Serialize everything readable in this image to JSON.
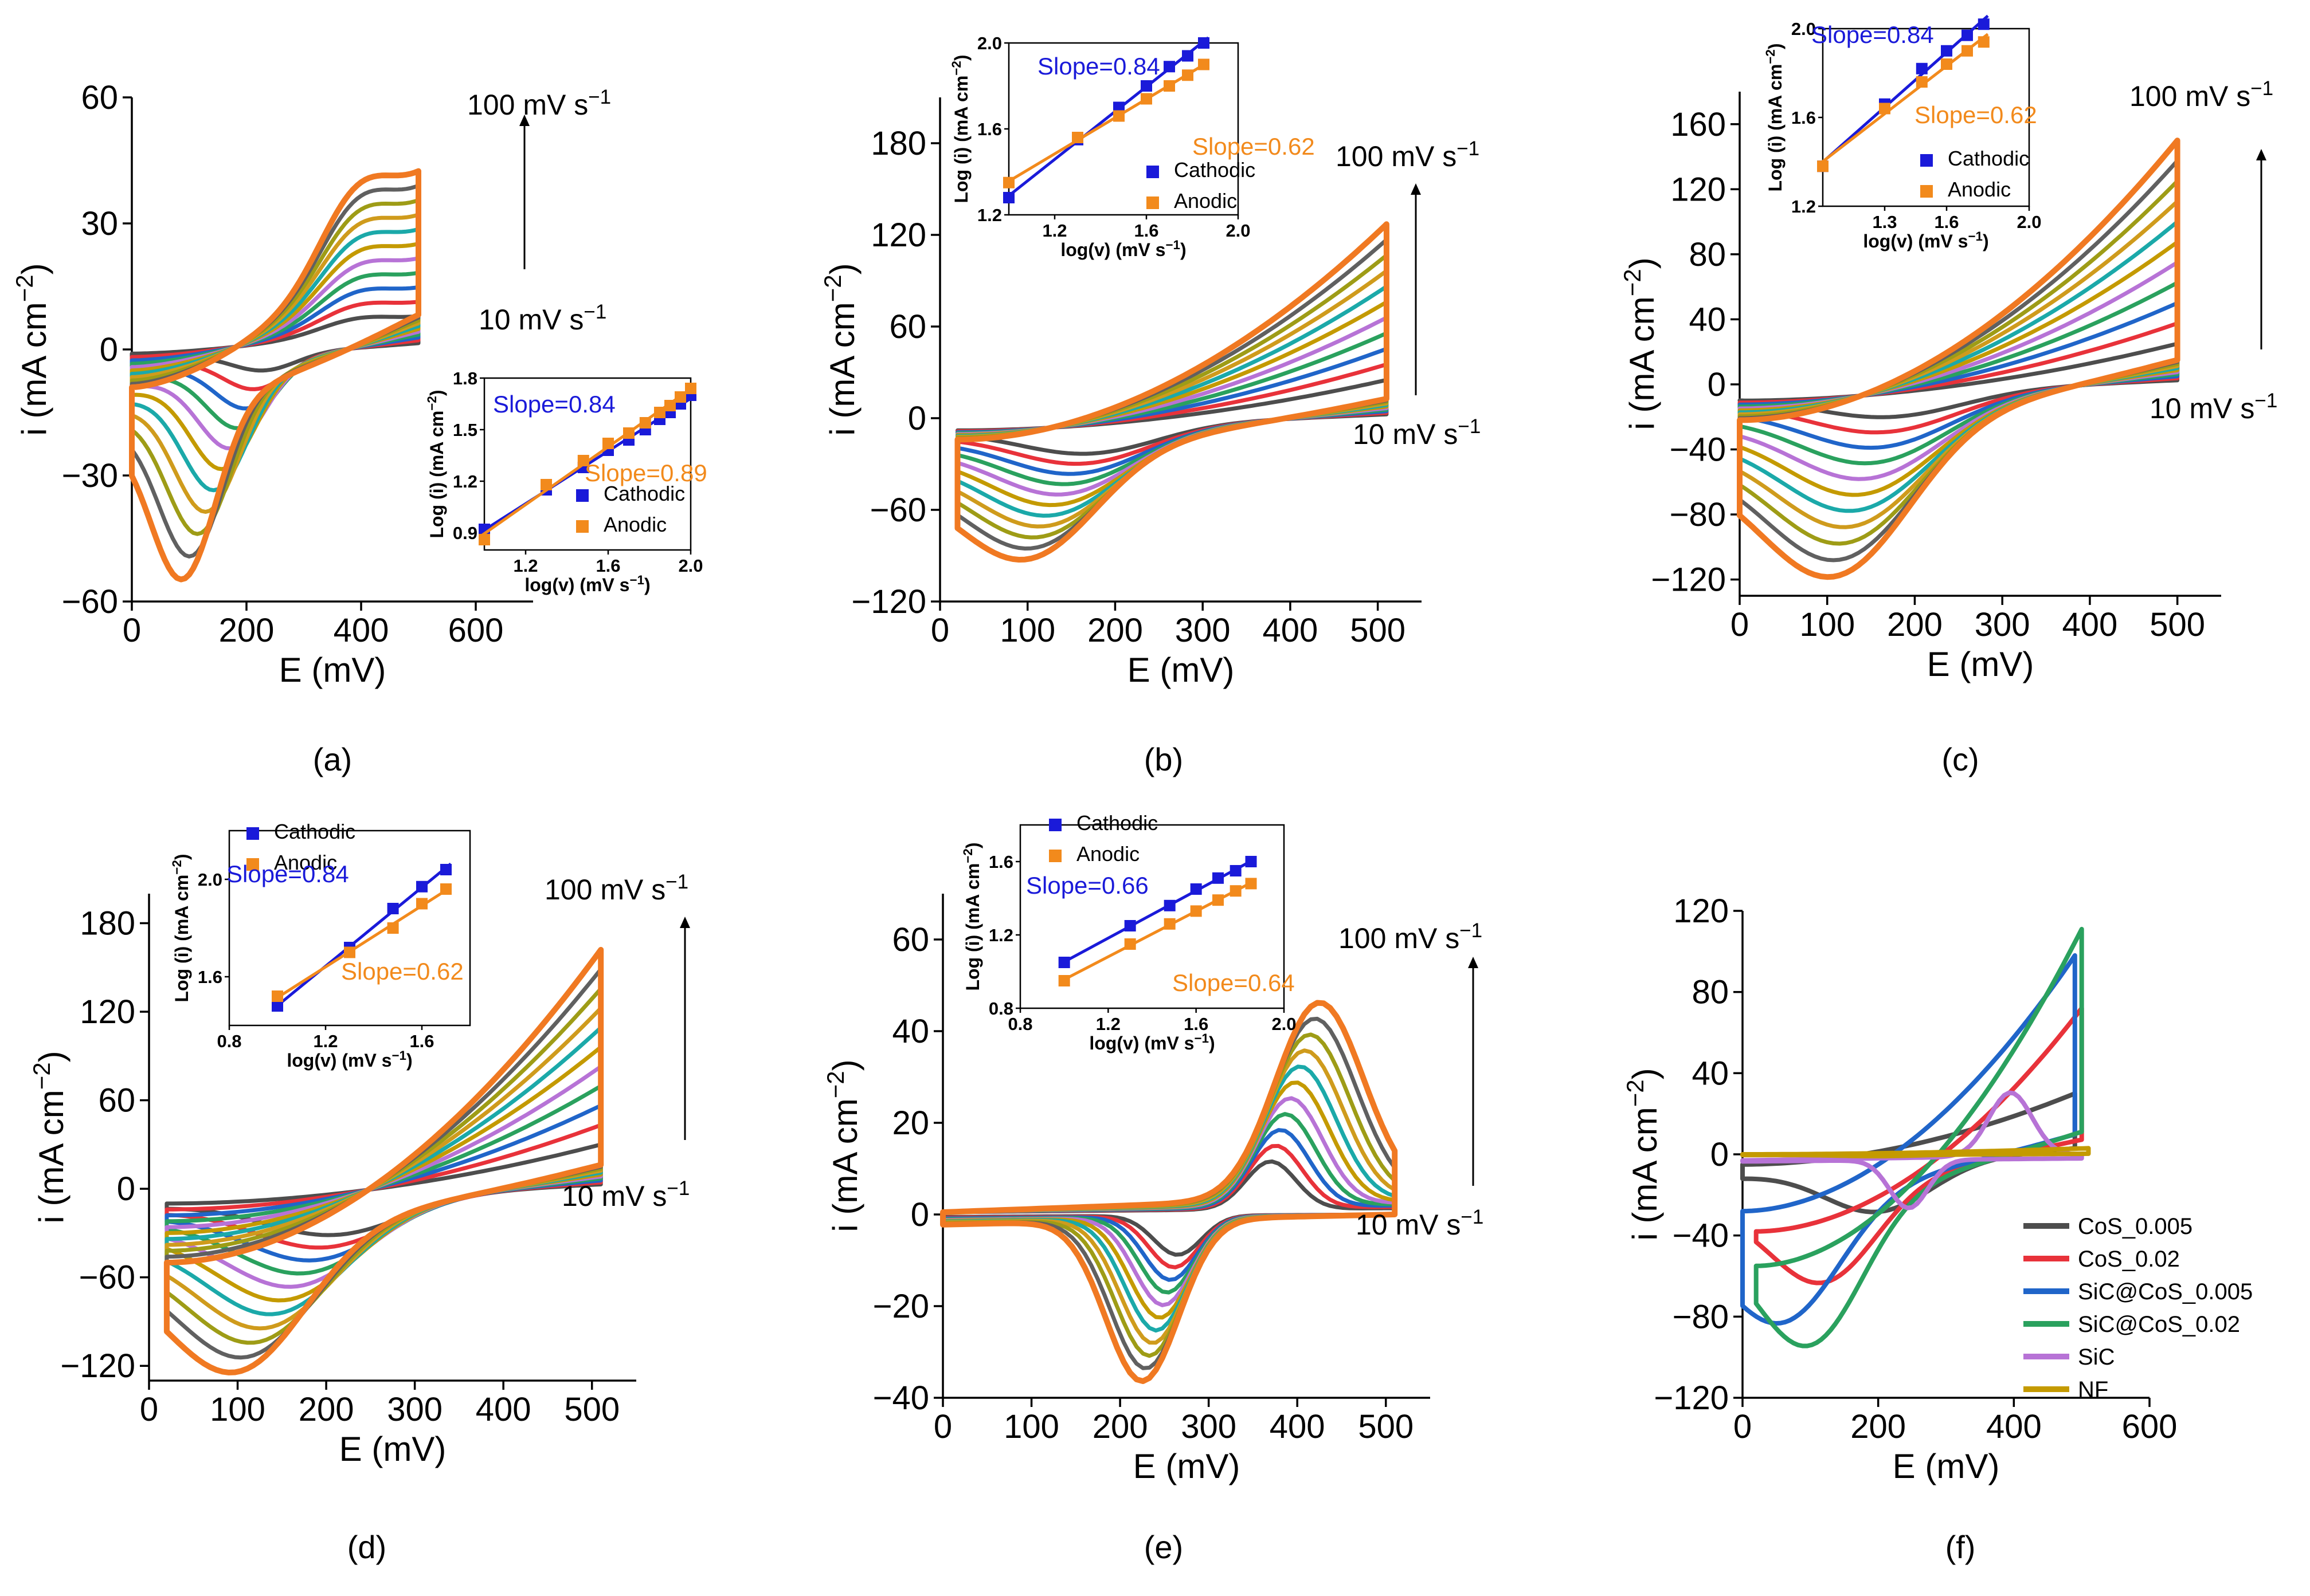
{
  "colors": {
    "scan_rate_series": [
      "#4d4d4d",
      "#e8323a",
      "#2065c9",
      "#2aa15e",
      "#b773d6",
      "#c49a00",
      "#1ba9a9",
      "#cf9b1c",
      "#9e9c16",
      "#606060",
      "#f07922"
    ],
    "cathodic": "#1a1ad9",
    "anodic": "#f28a1c",
    "slope_cathodic_text": "#1a1ad9",
    "slope_anodic_text": "#f28a1c"
  },
  "chart_data": [
    {
      "panel": "(a)",
      "type": "line",
      "xlabel": "E (mV)",
      "ylabel": "i (mA cm−2)",
      "xlim": [
        0,
        700
      ],
      "ylim": [
        -60,
        60
      ],
      "xticks": [
        "0",
        "200",
        "400",
        "600"
      ],
      "yticks": [
        "60",
        "30",
        "0",
        "−30",
        "−60"
      ],
      "annotation_top": "100 mV s−1",
      "annotation_bottom": "10 mV s−1",
      "series": [
        {
          "scan_rate": 10,
          "e_range": [
            0,
            500
          ],
          "i_peak_anodic": 10,
          "i_peak_cathodic": -6,
          "e_peak_anodic": 400,
          "e_peak_cathodic": 230
        },
        {
          "scan_rate": 100,
          "e_range": [
            0,
            500
          ],
          "i_peak_anodic": 55,
          "i_peak_cathodic": -57,
          "e_peak_anodic": 400,
          "e_peak_cathodic": 90
        }
      ],
      "inset": {
        "xlabel": "log(v) (mV s−1)",
        "ylabel": "Log (i) (mA cm−2)",
        "xlim": [
          1.0,
          2.0
        ],
        "ylim": [
          0.8,
          1.8
        ],
        "xticks": [
          "1.2",
          "1.6",
          "2.0"
        ],
        "yticks": [
          "1.8",
          "1.5",
          "1.2",
          "0.9"
        ],
        "legend": [
          "Cathodic",
          "Anodic"
        ],
        "slope_cathodic": "Slope=0.84",
        "slope_anodic": "Slope=0.89",
        "cathodic_x": [
          1.0,
          1.3,
          1.48,
          1.6,
          1.7,
          1.78,
          1.85,
          1.9,
          1.95,
          2.0
        ],
        "cathodic_y": [
          0.92,
          1.15,
          1.28,
          1.38,
          1.44,
          1.5,
          1.56,
          1.6,
          1.65,
          1.7
        ],
        "anodic_x": [
          1.0,
          1.3,
          1.48,
          1.6,
          1.7,
          1.78,
          1.85,
          1.9,
          1.95,
          2.0
        ],
        "anodic_y": [
          0.86,
          1.18,
          1.32,
          1.42,
          1.48,
          1.54,
          1.6,
          1.64,
          1.69,
          1.74
        ]
      }
    },
    {
      "panel": "(b)",
      "type": "line",
      "xlabel": "E (mV)",
      "ylabel": "i (mA cm−2)",
      "xlim": [
        0,
        550
      ],
      "ylim": [
        -120,
        210
      ],
      "xticks": [
        "0",
        "100",
        "200",
        "300",
        "400",
        "500"
      ],
      "yticks": [
        "180",
        "120",
        "60",
        "0",
        "−60",
        "−120"
      ],
      "annotation_top": "100 mV s−1",
      "annotation_bottom": "10 mV s−1",
      "series": [
        {
          "scan_rate": 10,
          "e_range": [
            20,
            510
          ],
          "i_peak_anodic": 25,
          "i_peak_cathodic": -25
        },
        {
          "scan_rate": 100,
          "e_range": [
            20,
            515
          ],
          "i_peak_anodic": 127,
          "i_peak_cathodic": -93
        }
      ],
      "inset": {
        "xlabel": "log(v) (mV s−1)",
        "ylabel": "Log (i) (mA cm−2)",
        "xlim": [
          1.0,
          2.0
        ],
        "ylim": [
          1.2,
          2.0
        ],
        "xticks": [
          "1.2",
          "1.6",
          "2.0"
        ],
        "yticks": [
          "2.0",
          "1.6",
          "1.2"
        ],
        "legend": [
          "Cathodic",
          "Anodic"
        ],
        "slope_cathodic": "Slope=0.84",
        "slope_anodic": "Slope=0.62",
        "cathodic_x": [
          1.0,
          1.3,
          1.48,
          1.6,
          1.7,
          1.78,
          1.85
        ],
        "cathodic_y": [
          1.28,
          1.55,
          1.7,
          1.8,
          1.89,
          1.94,
          2.0
        ],
        "anodic_x": [
          1.0,
          1.3,
          1.48,
          1.6,
          1.7,
          1.78,
          1.85
        ],
        "anodic_y": [
          1.35,
          1.56,
          1.66,
          1.74,
          1.8,
          1.85,
          1.9
        ]
      }
    },
    {
      "panel": "(c)",
      "type": "line",
      "xlabel": "E (mV)",
      "ylabel": "i (mA cm−2)",
      "xlim": [
        0,
        550
      ],
      "ylim": [
        -130,
        180
      ],
      "xticks": [
        "0",
        "100",
        "200",
        "300",
        "400",
        "500"
      ],
      "yticks": [
        "160",
        "120",
        "80",
        "40",
        "0",
        "−40",
        "−80",
        "−120"
      ],
      "annotation_top": "100 mV s−1",
      "annotation_bottom": "10 mV s−1",
      "series": [
        {
          "scan_rate": 10,
          "e_range": [
            0,
            500
          ],
          "i_peak_anodic": 25,
          "i_peak_cathodic": -22
        },
        {
          "scan_rate": 100,
          "e_range": [
            0,
            500
          ],
          "i_peak_anodic": 150,
          "i_peak_cathodic": -122
        }
      ],
      "inset": {
        "xlabel": "log(v) (mV s−1)",
        "ylabel": "Log (i) (mA cm−2)",
        "xlim": [
          1.0,
          2.0
        ],
        "ylim": [
          1.2,
          2.0
        ],
        "xticks": [
          "1.3",
          "1.6",
          "2.0"
        ],
        "yticks": [
          "2.0",
          "1.6",
          "1.2"
        ],
        "legend": [
          "Cathodic",
          "Anodic"
        ],
        "slope_cathodic": "Slope=0.84",
        "slope_anodic": "Slope=0.62",
        "cathodic_x": [
          1.0,
          1.3,
          1.48,
          1.6,
          1.7,
          1.78
        ],
        "cathodic_y": [
          1.38,
          1.66,
          1.82,
          1.9,
          1.97,
          2.02
        ],
        "anodic_x": [
          1.0,
          1.3,
          1.48,
          1.6,
          1.7,
          1.78
        ],
        "anodic_y": [
          1.38,
          1.64,
          1.76,
          1.84,
          1.9,
          1.94
        ]
      }
    },
    {
      "panel": "(d)",
      "type": "line",
      "xlabel": "E (mV)",
      "ylabel": "i (mA cm−2)",
      "xlim": [
        0,
        550
      ],
      "ylim": [
        -130,
        200
      ],
      "xticks": [
        "0",
        "100",
        "200",
        "300",
        "400",
        "500"
      ],
      "yticks": [
        "180",
        "120",
        "60",
        "0",
        "−60",
        "−120"
      ],
      "annotation_top": "100 mV s−1",
      "annotation_bottom": "10 mV s−1",
      "series": [
        {
          "scan_rate": 10,
          "e_range": [
            20,
            510
          ],
          "i_peak_anodic": 30,
          "i_peak_cathodic": -35
        },
        {
          "scan_rate": 100,
          "e_range": [
            20,
            510
          ],
          "i_peak_anodic": 162,
          "i_peak_cathodic": -125
        }
      ],
      "inset": {
        "xlabel": "log(v) (mV s−1)",
        "ylabel": "Log (i) (mA cm−2)",
        "xlim": [
          0.8,
          1.8
        ],
        "ylim": [
          1.4,
          2.2
        ],
        "xticks": [
          "0.8",
          "1.2",
          "1.6"
        ],
        "yticks": [
          "2.0",
          "1.6"
        ],
        "legend": [
          "Cathodic",
          "Anodic"
        ],
        "slope_cathodic": "Slope=0.84",
        "slope_anodic": "Slope=0.62",
        "cathodic_x": [
          1.0,
          1.3,
          1.48,
          1.6,
          1.7
        ],
        "cathodic_y": [
          1.48,
          1.72,
          1.88,
          1.97,
          2.04
        ],
        "anodic_x": [
          1.0,
          1.3,
          1.48,
          1.6,
          1.7
        ],
        "anodic_y": [
          1.52,
          1.7,
          1.8,
          1.9,
          1.96
        ]
      }
    },
    {
      "panel": "(e)",
      "type": "line",
      "xlabel": "E (mV)",
      "ylabel": "i (mA cm−2)",
      "xlim": [
        0,
        550
      ],
      "ylim": [
        -40,
        70
      ],
      "xticks": [
        "0",
        "100",
        "200",
        "300",
        "400",
        "500"
      ],
      "yticks": [
        "60",
        "40",
        "20",
        "0",
        "−20",
        "−40"
      ],
      "annotation_top": "100 mV s−1",
      "annotation_bottom": "10 mV s−1",
      "series": [
        {
          "scan_rate": 10,
          "e_range": [
            0,
            510
          ],
          "i_peak_anodic": 11,
          "i_peak_cathodic": -9,
          "e_peak_anodic": 370,
          "e_peak_cathodic": 265
        },
        {
          "scan_rate": 100,
          "e_range": [
            0,
            510
          ],
          "i_peak_anodic": 45,
          "i_peak_cathodic": -37,
          "e_peak_anodic": 425,
          "e_peak_cathodic": 225
        }
      ],
      "inset": {
        "xlabel": "log(v) (mV s−1)",
        "ylabel": "Log (i) (mA cm−2)",
        "xlim": [
          0.8,
          2.0
        ],
        "ylim": [
          0.8,
          1.8
        ],
        "xticks": [
          "0.8",
          "1.2",
          "1.6",
          "2.0"
        ],
        "yticks": [
          "1.6",
          "1.2",
          "0.8"
        ],
        "legend": [
          "Cathodic",
          "Anodic"
        ],
        "slope_cathodic": "Slope=0.66",
        "slope_anodic": "Slope=0.64",
        "cathodic_x": [
          1.0,
          1.3,
          1.48,
          1.6,
          1.7,
          1.78,
          1.85
        ],
        "cathodic_y": [
          1.05,
          1.25,
          1.36,
          1.45,
          1.51,
          1.55,
          1.6
        ],
        "anodic_x": [
          1.0,
          1.3,
          1.48,
          1.6,
          1.7,
          1.78,
          1.85
        ],
        "anodic_y": [
          0.95,
          1.15,
          1.26,
          1.33,
          1.39,
          1.44,
          1.48
        ]
      }
    },
    {
      "panel": "(f)",
      "type": "line",
      "xlabel": "E (mV)",
      "ylabel": "i (mA cm−2)",
      "xlim": [
        0,
        600
      ],
      "ylim": [
        -120,
        120
      ],
      "xticks": [
        "0",
        "200",
        "400",
        "600"
      ],
      "yticks": [
        "120",
        "80",
        "40",
        "0",
        "−40",
        "−80",
        "−120"
      ],
      "legend": [
        "CoS_0.005",
        "CoS_0.02",
        "SiC@CoS_0.005",
        "SiC@CoS_0.02",
        "SiC",
        "NF"
      ],
      "series": [
        {
          "name": "CoS_0.005",
          "color": "#4d4d4d",
          "i_peak_anodic": 30,
          "i_peak_cathodic": -32
        },
        {
          "name": "CoS_0.02",
          "color": "#e8323a",
          "i_peak_anodic": 79,
          "i_peak_cathodic": -65
        },
        {
          "name": "SiC@CoS_0.005",
          "color": "#2065c9",
          "i_peak_anodic": 98,
          "i_peak_cathodic": -85
        },
        {
          "name": "SiC@CoS_0.02",
          "color": "#2aa15e",
          "i_peak_anodic": 111,
          "i_peak_cathodic": -95
        },
        {
          "name": "SiC",
          "color": "#b773d6",
          "i_peak_anodic": 33,
          "i_peak_cathodic": -25
        },
        {
          "name": "NF",
          "color": "#c49a00",
          "i_peak_anodic": 3,
          "i_peak_cathodic": -1
        }
      ]
    }
  ],
  "panel_labels": [
    "(a)",
    "(b)",
    "(c)",
    "(d)",
    "(e)",
    "(f)"
  ]
}
